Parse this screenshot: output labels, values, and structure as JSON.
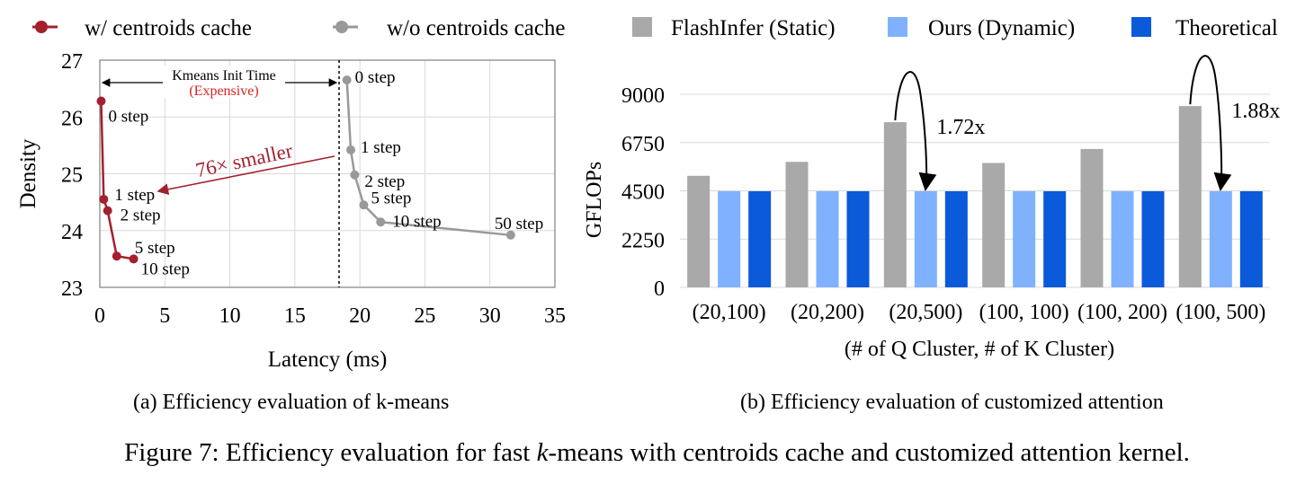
{
  "legend": [
    {
      "label": "w/ centroids cache",
      "kind": "line-marker",
      "color": "#a4202e"
    },
    {
      "label": "w/o centroids cache",
      "kind": "line-marker",
      "color": "#999999"
    },
    {
      "label": "FlashInfer (Static)",
      "kind": "box",
      "color": "#a9a9a9"
    },
    {
      "label": "Ours (Dynamic)",
      "kind": "box",
      "color": "#7fb1ff"
    },
    {
      "label": "Theoretical",
      "kind": "box",
      "color": "#0b5ad9"
    }
  ],
  "chart_data": [
    {
      "type": "line",
      "xlabel": "Latency (ms)",
      "ylabel": "Density",
      "xlim": [
        0,
        35
      ],
      "ylim": [
        23,
        27
      ],
      "xticks": [
        "0",
        "5",
        "10",
        "15",
        "20",
        "25",
        "30",
        "35"
      ],
      "yticks": [
        "23",
        "24",
        "25",
        "26",
        "27"
      ],
      "grid": true,
      "series": [
        {
          "name": "w/ centroids cache",
          "color": "#a4202e",
          "x": [
            0.1,
            0.3,
            0.6,
            1.3,
            2.6
          ],
          "y": [
            26.28,
            24.55,
            24.35,
            23.55,
            23.5
          ],
          "labels": [
            "0 step",
            "1 step",
            "2 step",
            "5 step",
            "10 step"
          ]
        },
        {
          "name": "w/o centroids cache",
          "color": "#999999",
          "x": [
            19.0,
            19.3,
            19.6,
            20.3,
            21.6,
            31.6
          ],
          "y": [
            26.65,
            25.42,
            24.98,
            24.45,
            24.15,
            23.92
          ],
          "labels": [
            "0 step",
            "1 step",
            "2 step",
            "5 step",
            "10 step",
            "50 step"
          ]
        }
      ],
      "annotations": {
        "init_line_x": 18.4,
        "init_title": "Kmeans Init Time",
        "init_note": "(Expensive)",
        "ratio_text": "76× smaller"
      },
      "caption": "(a) Efficiency evaluation of k-means"
    },
    {
      "type": "bar",
      "xlabel": "(# of Q Cluster, # of K Cluster)",
      "ylabel": "GFLOPs",
      "ylim": [
        0,
        9000
      ],
      "yticks": [
        "0",
        "2250",
        "4500",
        "6750",
        "9000"
      ],
      "grid": true,
      "categories": [
        "(20,100)",
        "(20,200)",
        "(20,500)",
        "(100, 100)",
        "(100, 200)",
        "(100, 500)"
      ],
      "series": [
        {
          "name": "FlashInfer (Static)",
          "color": "#a9a9a9",
          "values": [
            5200,
            5850,
            7700,
            5800,
            6450,
            8450
          ]
        },
        {
          "name": "Ours (Dynamic)",
          "color": "#7fb1ff",
          "values": [
            4480,
            4480,
            4480,
            4480,
            4480,
            4480
          ]
        },
        {
          "name": "Theoretical",
          "color": "#0b5ad9",
          "values": [
            4480,
            4480,
            4480,
            4480,
            4480,
            4480
          ]
        }
      ],
      "annotations": [
        {
          "category_index": 2,
          "text": "1.72x"
        },
        {
          "category_index": 5,
          "text": "1.88x"
        }
      ],
      "caption": "(b) Efficiency evaluation of customized attention"
    }
  ],
  "figure_caption": {
    "prefix": "Figure 7: Efficiency evaluation for fast ",
    "italic": "k",
    "suffix": "-means with centroids cache and customized attention kernel."
  }
}
